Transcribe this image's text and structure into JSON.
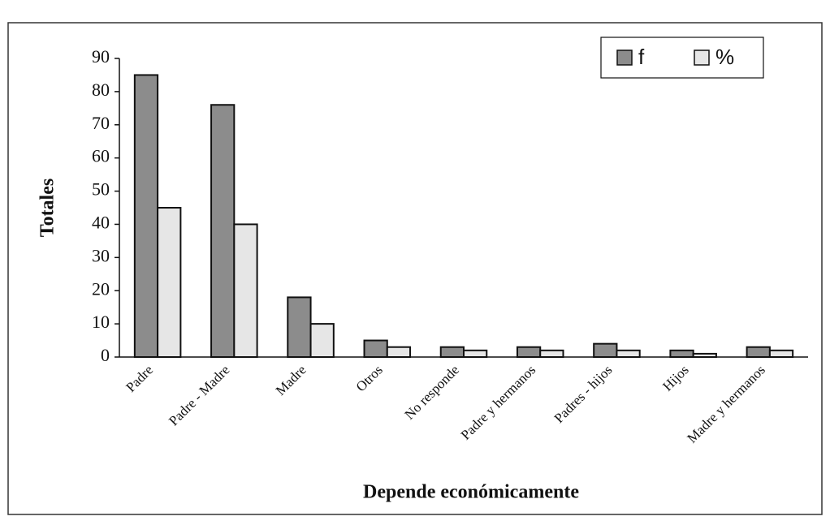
{
  "chart_data": {
    "type": "bar",
    "x_label": "Depende económicamente",
    "y_label": "Totales",
    "categories": [
      "Padre",
      "Padre - Madre",
      "Madre",
      "Otros",
      "No responde",
      "Padre y hermanos",
      "Padres - hijos",
      "Hijos",
      "Madre y hermanos"
    ],
    "series": [
      {
        "name": "f",
        "color": "#8c8c8c",
        "values": [
          85,
          76,
          18,
          5,
          3,
          3,
          4,
          2,
          3
        ]
      },
      {
        "name": "%",
        "color": "#e6e6e6",
        "values": [
          45,
          40,
          10,
          3,
          2,
          2,
          2,
          1,
          2
        ]
      }
    ],
    "ylim": [
      0,
      90
    ],
    "yticks": [
      0,
      10,
      20,
      30,
      40,
      50,
      60,
      70,
      80,
      90
    ],
    "grid": false,
    "legend": "upper right"
  }
}
